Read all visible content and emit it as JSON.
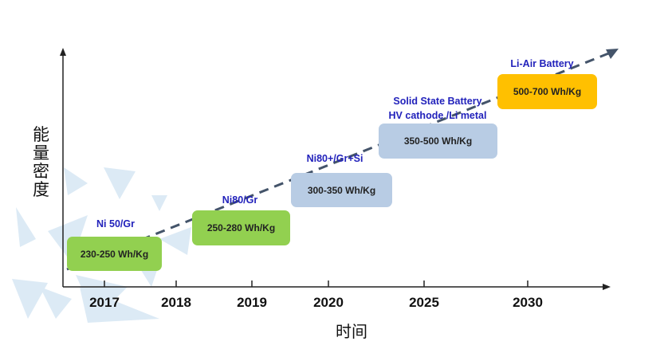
{
  "axes": {
    "y_label": "能量密度",
    "x_label": "时间"
  },
  "years": [
    "2017",
    "2018",
    "2019",
    "2020",
    "2025",
    "2030"
  ],
  "milestones": [
    {
      "tech": "Ni 50/Gr",
      "density": "230-250 Wh/Kg",
      "color": "#92d050"
    },
    {
      "tech": "Ni80/Gr",
      "density": "250-280 Wh/Kg",
      "color": "#92d050"
    },
    {
      "tech": "Ni80+/Gr+Si",
      "density": "300-350 Wh/Kg",
      "color": "#b8cce4"
    },
    {
      "tech": "Solid State Battery",
      "tech2": "HV cathode /Li metal",
      "density": "350-500 Wh/Kg",
      "color": "#b8cce4"
    },
    {
      "tech": "Li-Air Battery",
      "density": "500-700 Wh/Kg",
      "color": "#ffc000"
    }
  ],
  "colors": {
    "trend_arrow": "#44546a",
    "tech_text": "#2222bb",
    "background_triangles": "#dceaf5"
  }
}
